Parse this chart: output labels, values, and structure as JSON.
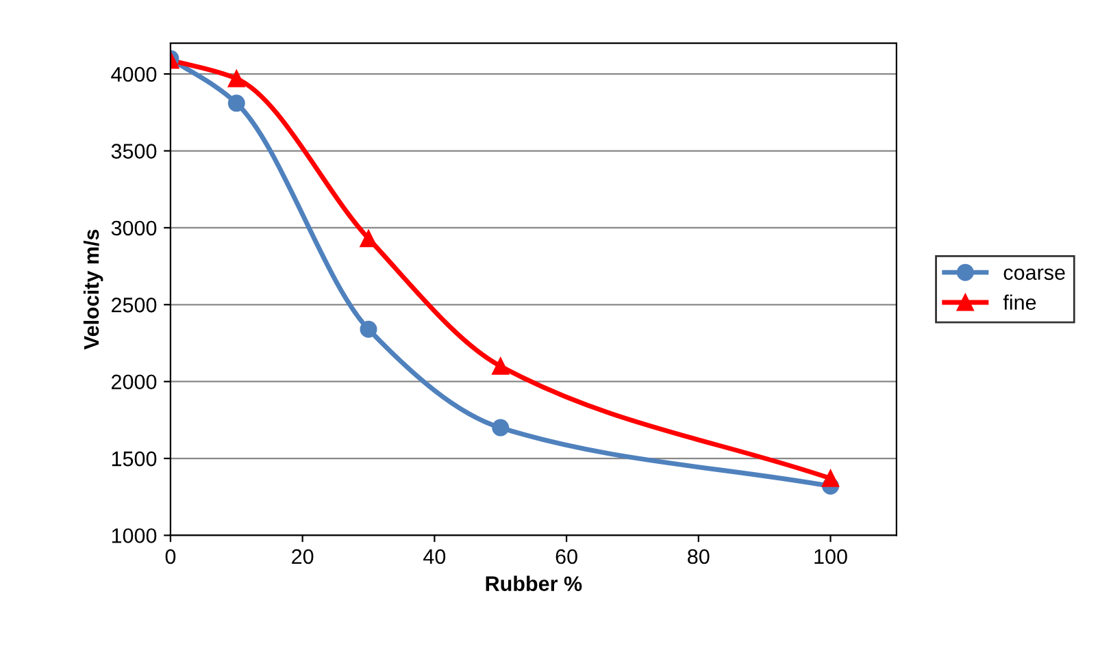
{
  "chart_data": {
    "type": "line",
    "xlabel": "Rubber %",
    "ylabel": "Velocity m/s",
    "x": [
      0,
      10,
      30,
      50,
      100
    ],
    "series": [
      {
        "name": "coarse",
        "color": "#4f81bd",
        "marker": "circle",
        "values": [
          4100,
          3810,
          2340,
          1700,
          1320
        ]
      },
      {
        "name": "fine",
        "color": "#ff0000",
        "marker": "triangle",
        "values": [
          4090,
          3970,
          2930,
          2100,
          1370
        ]
      }
    ],
    "xlim": [
      0,
      110
    ],
    "xticks": [
      0,
      20,
      40,
      60,
      80,
      100
    ],
    "ylim": [
      1000,
      4200
    ],
    "yticks": [
      1000,
      1500,
      2000,
      2500,
      3000,
      3500,
      4000
    ],
    "grid": "y",
    "legend": "right",
    "line_style": "solid"
  }
}
